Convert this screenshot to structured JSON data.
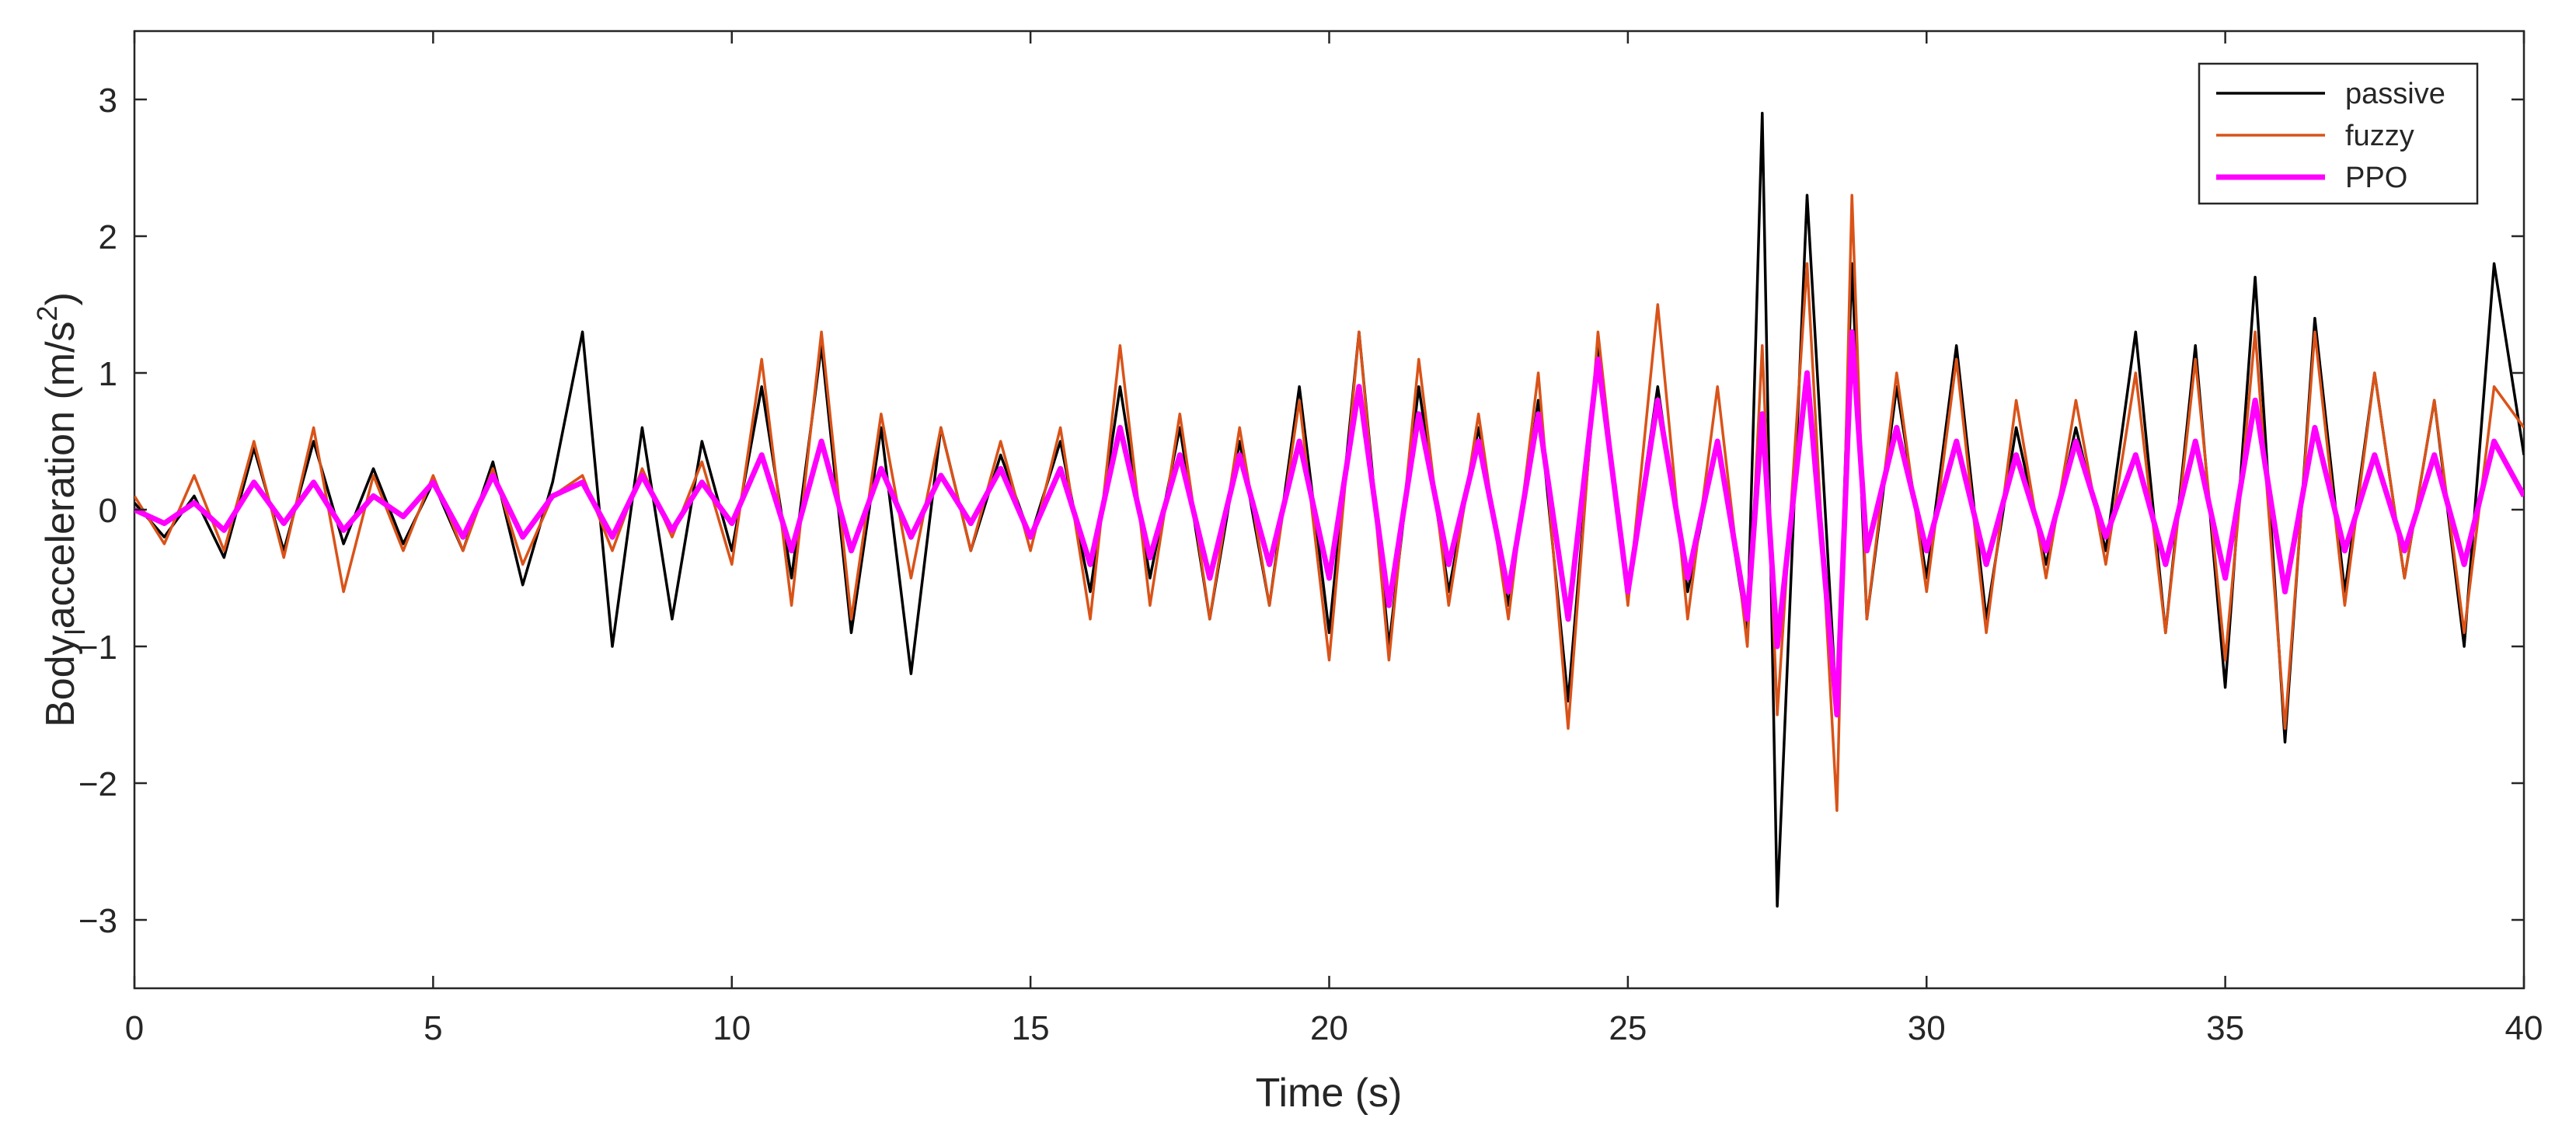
{
  "chart_data": {
    "type": "line",
    "title": "",
    "xlabel": "Time (s)",
    "ylabel_parts": [
      "Body",
      "l",
      "acceleration (m/s",
      "2",
      ")"
    ],
    "xlim": [
      0,
      40
    ],
    "ylim": [
      -3.5,
      3.5
    ],
    "xticks": [
      0,
      5,
      10,
      15,
      20,
      25,
      30,
      35,
      40
    ],
    "yticks": [
      -3,
      -2,
      -1,
      0,
      1,
      2,
      3
    ],
    "ytick_labels": [
      "−3",
      "−2",
      "−1",
      "0",
      "1",
      "2",
      "3"
    ],
    "grid": false,
    "legend_position": "top-right",
    "x": [
      0,
      0.5,
      1,
      1.5,
      2,
      2.5,
      3,
      3.5,
      4,
      4.5,
      5,
      5.5,
      6,
      6.5,
      7,
      7.5,
      8,
      8.5,
      9,
      9.5,
      10,
      10.5,
      11,
      11.5,
      12,
      12.5,
      13,
      13.5,
      14,
      14.5,
      15,
      15.5,
      16,
      16.5,
      17,
      17.5,
      18,
      18.5,
      19,
      19.5,
      20,
      20.5,
      21,
      21.5,
      22,
      22.5,
      23,
      23.5,
      24,
      24.5,
      25,
      25.5,
      26,
      26.5,
      27,
      27.25,
      27.5,
      28,
      28.5,
      28.75,
      29,
      29.5,
      30,
      30.5,
      31,
      31.5,
      32,
      32.5,
      33,
      33.5,
      34,
      34.5,
      35,
      35.5,
      36,
      36.5,
      37,
      37.5,
      38,
      38.5,
      39,
      39.5,
      40
    ],
    "series": [
      {
        "name": "passive",
        "color": "#000000",
        "width": 3.5,
        "values": [
          0.05,
          -0.2,
          0.1,
          -0.35,
          0.45,
          -0.3,
          0.5,
          -0.25,
          0.3,
          -0.25,
          0.2,
          -0.3,
          0.35,
          -0.55,
          0.2,
          1.3,
          -1.0,
          0.6,
          -0.8,
          0.5,
          -0.3,
          0.9,
          -0.5,
          1.2,
          -0.9,
          0.6,
          -1.2,
          0.6,
          -0.3,
          0.4,
          -0.2,
          0.5,
          -0.6,
          0.9,
          -0.5,
          0.6,
          -0.8,
          0.5,
          -0.7,
          0.9,
          -0.9,
          1.3,
          -1.0,
          0.9,
          -0.6,
          0.6,
          -0.7,
          0.8,
          -1.4,
          1.2,
          -0.6,
          0.9,
          -0.6,
          0.5,
          -0.9,
          2.9,
          -2.9,
          2.3,
          -1.5,
          1.8,
          -0.8,
          0.9,
          -0.5,
          1.2,
          -0.8,
          0.6,
          -0.4,
          0.6,
          -0.3,
          1.3,
          -0.9,
          1.2,
          -1.3,
          1.7,
          -1.7,
          1.4,
          -0.6,
          1.0,
          -0.5,
          0.8,
          -1.0,
          1.8,
          0.4
        ]
      },
      {
        "name": "fuzzy",
        "color": "#D95319",
        "width": 3.5,
        "values": [
          0.1,
          -0.25,
          0.25,
          -0.3,
          0.5,
          -0.35,
          0.6,
          -0.6,
          0.25,
          -0.3,
          0.25,
          -0.3,
          0.3,
          -0.4,
          0.1,
          0.25,
          -0.3,
          0.3,
          -0.2,
          0.35,
          -0.4,
          1.1,
          -0.7,
          1.3,
          -0.8,
          0.7,
          -0.5,
          0.6,
          -0.3,
          0.5,
          -0.3,
          0.6,
          -0.8,
          1.2,
          -0.7,
          0.7,
          -0.8,
          0.6,
          -0.7,
          0.8,
          -1.1,
          1.3,
          -1.1,
          1.1,
          -0.7,
          0.7,
          -0.8,
          1.0,
          -1.6,
          1.3,
          -0.7,
          1.5,
          -0.8,
          0.9,
          -1.0,
          1.2,
          -1.5,
          1.8,
          -2.2,
          2.3,
          -0.8,
          1.0,
          -0.6,
          1.1,
          -0.9,
          0.8,
          -0.5,
          0.8,
          -0.4,
          1.0,
          -0.9,
          1.1,
          -1.1,
          1.3,
          -1.6,
          1.3,
          -0.7,
          1.0,
          -0.5,
          0.8,
          -0.9,
          0.9,
          0.6
        ]
      },
      {
        "name": "PPO",
        "color": "#FF00FF",
        "width": 7,
        "values": [
          0.0,
          -0.1,
          0.05,
          -0.15,
          0.2,
          -0.1,
          0.2,
          -0.15,
          0.1,
          -0.05,
          0.2,
          -0.2,
          0.25,
          -0.2,
          0.1,
          0.2,
          -0.2,
          0.25,
          -0.15,
          0.2,
          -0.1,
          0.4,
          -0.3,
          0.5,
          -0.3,
          0.3,
          -0.2,
          0.25,
          -0.1,
          0.3,
          -0.2,
          0.3,
          -0.4,
          0.6,
          -0.35,
          0.4,
          -0.5,
          0.4,
          -0.4,
          0.5,
          -0.5,
          0.9,
          -0.7,
          0.7,
          -0.4,
          0.5,
          -0.6,
          0.7,
          -0.8,
          1.1,
          -0.6,
          0.8,
          -0.5,
          0.5,
          -0.8,
          0.7,
          -1.0,
          1.0,
          -1.5,
          1.3,
          -0.3,
          0.6,
          -0.3,
          0.5,
          -0.4,
          0.4,
          -0.3,
          0.5,
          -0.2,
          0.4,
          -0.4,
          0.5,
          -0.5,
          0.8,
          -0.6,
          0.6,
          -0.3,
          0.4,
          -0.3,
          0.4,
          -0.4,
          0.5,
          0.1
        ]
      }
    ]
  }
}
